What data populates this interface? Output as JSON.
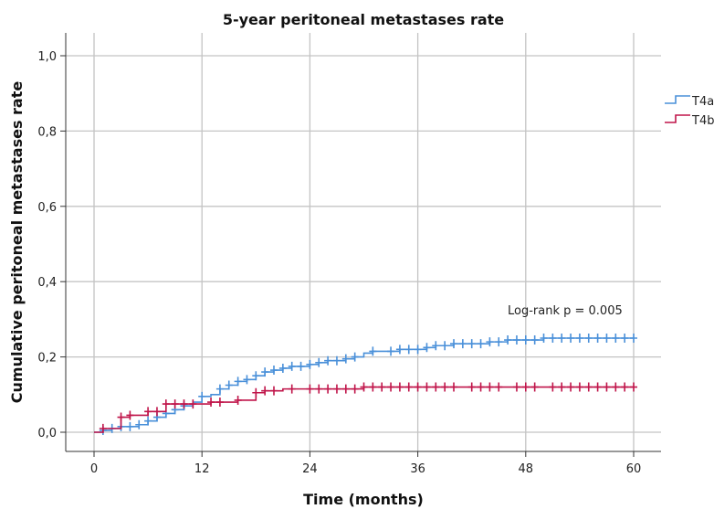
{
  "chart_data": {
    "type": "line",
    "step": true,
    "title": "5-year peritoneal metastases rate",
    "xlabel": "Time (months)",
    "ylabel": "Cumulative peritoneal metastases rate",
    "xlim": [
      0,
      60
    ],
    "ylim": [
      0,
      1.0
    ],
    "x_ticks": [
      0,
      12,
      24,
      36,
      48,
      60
    ],
    "x_tick_labels": [
      "0",
      "12",
      "24",
      "36",
      "48",
      "60"
    ],
    "y_ticks": [
      0,
      0.2,
      0.4,
      0.6,
      0.8,
      1.0
    ],
    "y_tick_labels": [
      "0,0",
      "0,2",
      "0,4",
      "0,6",
      "0,8",
      "1,0"
    ],
    "grid": true,
    "legend_position": "right",
    "annotation": "Log-rank p = 0.005",
    "series": [
      {
        "name": "T4a",
        "color": "#4a90d9",
        "steps": [
          [
            0,
            0
          ],
          [
            1,
            0.005
          ],
          [
            2,
            0.01
          ],
          [
            3,
            0.015
          ],
          [
            5,
            0.02
          ],
          [
            6,
            0.03
          ],
          [
            7,
            0.04
          ],
          [
            8,
            0.05
          ],
          [
            9,
            0.06
          ],
          [
            10,
            0.07
          ],
          [
            11,
            0.08
          ],
          [
            12,
            0.095
          ],
          [
            13,
            0.1
          ],
          [
            14,
            0.115
          ],
          [
            15,
            0.125
          ],
          [
            16,
            0.135
          ],
          [
            17,
            0.14
          ],
          [
            18,
            0.15
          ],
          [
            19,
            0.16
          ],
          [
            20,
            0.165
          ],
          [
            21,
            0.17
          ],
          [
            22,
            0.175
          ],
          [
            24,
            0.18
          ],
          [
            25,
            0.185
          ],
          [
            26,
            0.19
          ],
          [
            28,
            0.195
          ],
          [
            29,
            0.2
          ],
          [
            30,
            0.21
          ],
          [
            31,
            0.215
          ],
          [
            34,
            0.22
          ],
          [
            37,
            0.225
          ],
          [
            38,
            0.23
          ],
          [
            40,
            0.235
          ],
          [
            44,
            0.24
          ],
          [
            46,
            0.245
          ],
          [
            50,
            0.25
          ],
          [
            60,
            0.25
          ]
        ],
        "censored": [
          [
            1,
            0.005
          ],
          [
            2,
            0.01
          ],
          [
            3,
            0.015
          ],
          [
            4,
            0.015
          ],
          [
            5,
            0.02
          ],
          [
            6,
            0.03
          ],
          [
            7,
            0.04
          ],
          [
            8,
            0.05
          ],
          [
            9,
            0.06
          ],
          [
            10,
            0.07
          ],
          [
            12,
            0.095
          ],
          [
            14,
            0.115
          ],
          [
            15,
            0.125
          ],
          [
            16,
            0.135
          ],
          [
            17,
            0.14
          ],
          [
            18,
            0.15
          ],
          [
            19,
            0.16
          ],
          [
            20,
            0.165
          ],
          [
            21,
            0.17
          ],
          [
            22,
            0.175
          ],
          [
            23,
            0.175
          ],
          [
            24,
            0.18
          ],
          [
            25,
            0.185
          ],
          [
            26,
            0.19
          ],
          [
            27,
            0.19
          ],
          [
            28,
            0.195
          ],
          [
            29,
            0.2
          ],
          [
            31,
            0.215
          ],
          [
            33,
            0.215
          ],
          [
            34,
            0.22
          ],
          [
            35,
            0.22
          ],
          [
            36,
            0.22
          ],
          [
            37,
            0.225
          ],
          [
            38,
            0.23
          ],
          [
            39,
            0.23
          ],
          [
            40,
            0.235
          ],
          [
            41,
            0.235
          ],
          [
            42,
            0.235
          ],
          [
            43,
            0.235
          ],
          [
            44,
            0.24
          ],
          [
            45,
            0.24
          ],
          [
            46,
            0.245
          ],
          [
            47,
            0.245
          ],
          [
            48,
            0.245
          ],
          [
            49,
            0.245
          ],
          [
            50,
            0.25
          ],
          [
            51,
            0.25
          ],
          [
            52,
            0.25
          ],
          [
            53,
            0.25
          ],
          [
            54,
            0.25
          ],
          [
            55,
            0.25
          ],
          [
            56,
            0.25
          ],
          [
            57,
            0.25
          ],
          [
            58,
            0.25
          ],
          [
            59,
            0.25
          ],
          [
            60,
            0.25
          ]
        ]
      },
      {
        "name": "T4b",
        "color": "#c0154a",
        "steps": [
          [
            0,
            0
          ],
          [
            1,
            0.01
          ],
          [
            3,
            0.04
          ],
          [
            4,
            0.045
          ],
          [
            6,
            0.055
          ],
          [
            8,
            0.075
          ],
          [
            13,
            0.08
          ],
          [
            16,
            0.085
          ],
          [
            18,
            0.105
          ],
          [
            19,
            0.11
          ],
          [
            21,
            0.115
          ],
          [
            30,
            0.12
          ],
          [
            60,
            0.12
          ]
        ],
        "censored": [
          [
            1,
            0.01
          ],
          [
            3,
            0.04
          ],
          [
            4,
            0.045
          ],
          [
            6,
            0.055
          ],
          [
            7,
            0.055
          ],
          [
            8,
            0.075
          ],
          [
            9,
            0.075
          ],
          [
            10,
            0.075
          ],
          [
            11,
            0.075
          ],
          [
            13,
            0.08
          ],
          [
            14,
            0.08
          ],
          [
            16,
            0.085
          ],
          [
            18,
            0.105
          ],
          [
            19,
            0.11
          ],
          [
            20,
            0.11
          ],
          [
            22,
            0.115
          ],
          [
            24,
            0.115
          ],
          [
            25,
            0.115
          ],
          [
            26,
            0.115
          ],
          [
            27,
            0.115
          ],
          [
            28,
            0.115
          ],
          [
            29,
            0.115
          ],
          [
            30,
            0.12
          ],
          [
            31,
            0.12
          ],
          [
            32,
            0.12
          ],
          [
            33,
            0.12
          ],
          [
            34,
            0.12
          ],
          [
            35,
            0.12
          ],
          [
            36,
            0.12
          ],
          [
            37,
            0.12
          ],
          [
            38,
            0.12
          ],
          [
            39,
            0.12
          ],
          [
            40,
            0.12
          ],
          [
            42,
            0.12
          ],
          [
            43,
            0.12
          ],
          [
            44,
            0.12
          ],
          [
            45,
            0.12
          ],
          [
            47,
            0.12
          ],
          [
            48,
            0.12
          ],
          [
            49,
            0.12
          ],
          [
            51,
            0.12
          ],
          [
            52,
            0.12
          ],
          [
            53,
            0.12
          ],
          [
            54,
            0.12
          ],
          [
            55,
            0.12
          ],
          [
            56,
            0.12
          ],
          [
            57,
            0.12
          ],
          [
            58,
            0.12
          ],
          [
            59,
            0.12
          ],
          [
            60,
            0.12
          ]
        ]
      }
    ]
  }
}
